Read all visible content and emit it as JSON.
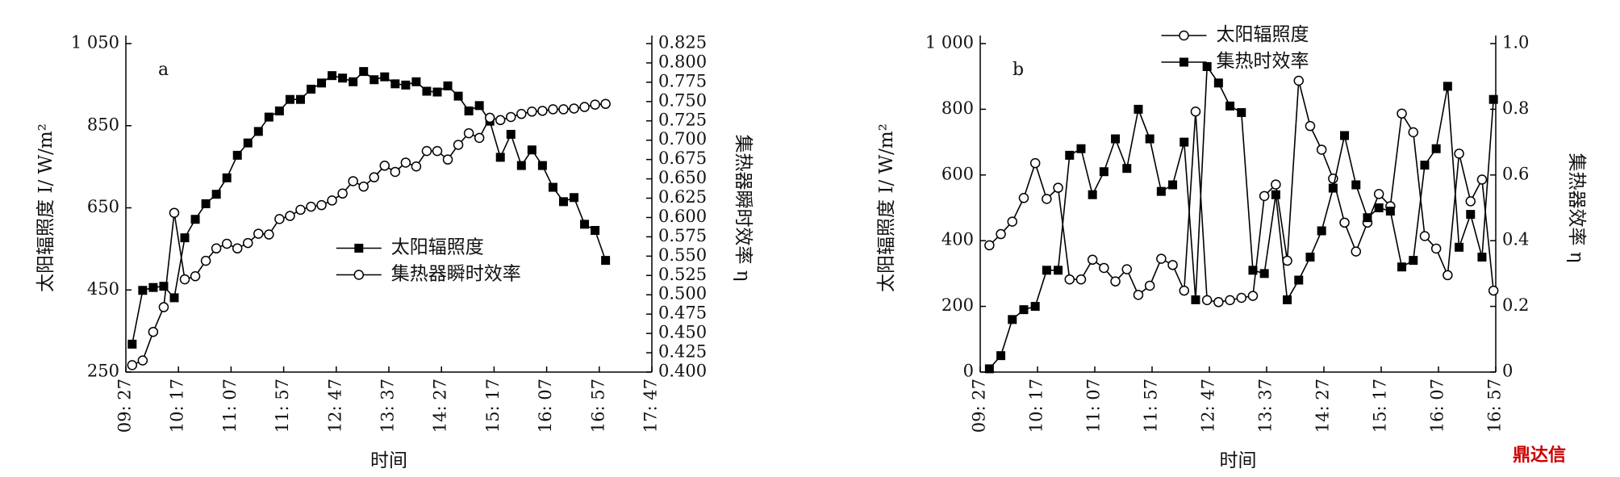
{
  "chart_data": [
    {
      "type": "line",
      "panel_label": "a",
      "xlabel": "时间",
      "ylabel": "太阳辐照度 I/ W/m²",
      "y2label": "集热器瞬时效率 η",
      "legend_loc": "center",
      "x": [
        573,
        583,
        593,
        603,
        613,
        623,
        633,
        643,
        653,
        663,
        673,
        683,
        693,
        703,
        713,
        723,
        733,
        743,
        753,
        763,
        773,
        783,
        793,
        803,
        813,
        823,
        833,
        843,
        853,
        863,
        873,
        883,
        893,
        903,
        913,
        923,
        933,
        943,
        953,
        963,
        973,
        983,
        993,
        1003,
        1013,
        1023
      ],
      "xlim": [
        567,
        1067
      ],
      "xticks": [
        {
          "value": 567,
          "label": "09: 27"
        },
        {
          "value": 617,
          "label": "10: 17"
        },
        {
          "value": 667,
          "label": "11: 07"
        },
        {
          "value": 717,
          "label": "11: 57"
        },
        {
          "value": 767,
          "label": "12: 47"
        },
        {
          "value": 817,
          "label": "13: 37"
        },
        {
          "value": 867,
          "label": "14: 27"
        },
        {
          "value": 917,
          "label": "15: 17"
        },
        {
          "value": 967,
          "label": "16: 07"
        },
        {
          "value": 1017,
          "label": "16: 57"
        },
        {
          "value": 1067,
          "label": "17: 47"
        }
      ],
      "ylim": [
        250,
        1050
      ],
      "yticks": [
        250,
        450,
        650,
        850,
        {
          "value": 1050,
          "label": "1 050"
        }
      ],
      "y2lim": [
        0.4,
        0.825
      ],
      "y2ticks": [
        {
          "value": 0.4,
          "label": "0.400"
        },
        {
          "value": 0.425,
          "label": "0.425"
        },
        {
          "value": 0.45,
          "label": "0.450"
        },
        {
          "value": 0.475,
          "label": "0.475"
        },
        {
          "value": 0.5,
          "label": "0.500"
        },
        {
          "value": 0.525,
          "label": "0.525"
        },
        {
          "value": 0.55,
          "label": "0.550"
        },
        {
          "value": 0.575,
          "label": "0.575"
        },
        {
          "value": 0.6,
          "label": "0.600"
        },
        {
          "value": 0.625,
          "label": "0.625"
        },
        {
          "value": 0.65,
          "label": "0.650"
        },
        {
          "value": 0.675,
          "label": "0.675"
        },
        {
          "value": 0.7,
          "label": "0.700"
        },
        {
          "value": 0.725,
          "label": "0.725"
        },
        {
          "value": 0.75,
          "label": "0.750"
        },
        {
          "value": 0.775,
          "label": "0.775"
        },
        {
          "value": 0.8,
          "label": "0.800"
        },
        {
          "value": 0.825,
          "label": "0.825"
        }
      ],
      "series": [
        {
          "name": "太阳辐照度",
          "color": "#000000",
          "marker": "square",
          "values": [
            318,
            449,
            456,
            459,
            431,
            577,
            622,
            660,
            683,
            723,
            778,
            808,
            836,
            871,
            886,
            914,
            914,
            939,
            954,
            972,
            966,
            957,
            982,
            962,
            969,
            952,
            949,
            957,
            934,
            932,
            947,
            922,
            886,
            899,
            861,
            773,
            829,
            753,
            791,
            753,
            700,
            665,
            675,
            610,
            595,
            522
          ]
        },
        {
          "name": "集热器瞬时效率",
          "color": "#000000",
          "marker": "circle",
          "axis": "y2",
          "values": [
            0.409,
            0.415,
            0.452,
            0.484,
            0.606,
            0.52,
            0.524,
            0.544,
            0.56,
            0.566,
            0.56,
            0.567,
            0.579,
            0.578,
            0.598,
            0.602,
            0.61,
            0.614,
            0.616,
            0.622,
            0.631,
            0.647,
            0.64,
            0.652,
            0.667,
            0.659,
            0.671,
            0.666,
            0.686,
            0.686,
            0.675,
            0.694,
            0.709,
            0.703,
            0.729,
            0.726,
            0.73,
            0.734,
            0.737,
            0.738,
            0.74,
            0.74,
            0.741,
            0.743,
            0.746,
            0.747
          ]
        }
      ]
    },
    {
      "type": "line",
      "panel_label": "b",
      "xlabel": "时间",
      "ylabel": "太阳辐照度 I/ W/m²",
      "y2label": "集热器效率 η",
      "legend_loc": "upper center",
      "x": [
        575,
        585,
        595,
        605,
        615,
        625,
        635,
        645,
        655,
        665,
        675,
        685,
        695,
        705,
        715,
        725,
        735,
        745,
        755,
        765,
        775,
        785,
        795,
        805,
        815,
        825,
        835,
        845,
        855,
        865,
        875,
        885,
        895,
        905,
        915,
        925,
        935,
        945,
        955,
        965,
        975,
        985,
        995,
        1005,
        1015
      ],
      "xlim": [
        567,
        1017
      ],
      "xticks": [
        {
          "value": 567,
          "label": "09: 27"
        },
        {
          "value": 617,
          "label": "10: 17"
        },
        {
          "value": 667,
          "label": "11: 07"
        },
        {
          "value": 717,
          "label": "11: 57"
        },
        {
          "value": 767,
          "label": "12: 47"
        },
        {
          "value": 817,
          "label": "13: 37"
        },
        {
          "value": 867,
          "label": "14: 27"
        },
        {
          "value": 917,
          "label": "15: 17"
        },
        {
          "value": 967,
          "label": "16: 07"
        },
        {
          "value": 1017,
          "label": "16: 57"
        }
      ],
      "ylim": [
        0,
        1000
      ],
      "yticks": [
        0,
        200,
        400,
        600,
        800,
        {
          "value": 1000,
          "label": "1 000"
        }
      ],
      "y2lim": [
        0,
        1
      ],
      "y2ticks": [
        0,
        0.2,
        0.4,
        0.6,
        0.8,
        {
          "value": 1,
          "label": "1.0"
        }
      ],
      "series": [
        {
          "name": "太阳辐照度",
          "color": "#000000",
          "marker": "circle",
          "values": [
            386,
            420,
            458,
            530,
            636,
            527,
            561,
            282,
            282,
            342,
            317,
            276,
            313,
            235,
            263,
            345,
            326,
            248,
            793,
            219,
            213,
            219,
            226,
            232,
            536,
            571,
            339,
            887,
            749,
            677,
            589,
            455,
            367,
            455,
            542,
            505,
            787,
            730,
            414,
            376,
            295,
            665,
            520,
            586,
            248
          ]
        },
        {
          "name": "集热时效率",
          "color": "#000000",
          "marker": "square",
          "axis": "y2",
          "values": [
            0.01,
            0.05,
            0.16,
            0.19,
            0.2,
            0.31,
            0.31,
            0.66,
            0.68,
            0.54,
            0.61,
            0.71,
            0.62,
            0.8,
            0.71,
            0.55,
            0.57,
            0.7,
            0.22,
            0.93,
            0.88,
            0.81,
            0.79,
            0.31,
            0.3,
            0.54,
            0.22,
            0.28,
            0.35,
            0.43,
            0.56,
            0.72,
            0.57,
            0.47,
            0.5,
            0.49,
            0.32,
            0.34,
            0.63,
            0.68,
            0.87,
            0.38,
            0.48,
            0.35,
            0.83
          ]
        }
      ]
    }
  ],
  "watermark": "鼎达信"
}
